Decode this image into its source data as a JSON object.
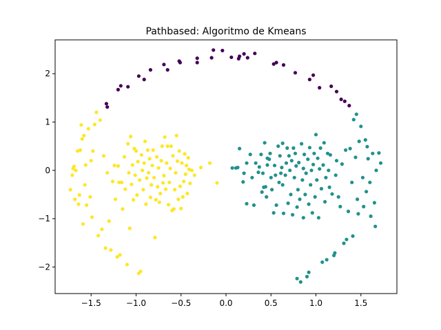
{
  "chart_data": {
    "type": "scatter",
    "title": "Pathbased: Algoritmo de Kmeans",
    "xlabel": "",
    "ylabel": "",
    "xlim": [
      -1.9,
      1.9
    ],
    "ylim": [
      -2.55,
      2.7
    ],
    "x_ticks": [
      -1.5,
      -1.0,
      -0.5,
      0.0,
      0.5,
      1.0,
      1.5
    ],
    "y_ticks": [
      -2,
      -1,
      0,
      1,
      2
    ],
    "x_tick_labels": [
      "−1.5",
      "−1.0",
      "−0.5",
      "0.0",
      "0.5",
      "1.0",
      "1.5"
    ],
    "y_tick_labels": [
      "−2",
      "−1",
      "0",
      "1",
      "2"
    ],
    "grid": false,
    "legend": "none",
    "series": [
      {
        "color": "#440154",
        "points": [
          [
            -1.33,
            1.38
          ],
          [
            -1.32,
            1.31
          ],
          [
            -1.2,
            1.67
          ],
          [
            -1.17,
            1.75
          ],
          [
            -1.09,
            1.73
          ],
          [
            -0.97,
            1.95
          ],
          [
            -0.91,
            1.88
          ],
          [
            -0.84,
            2.08
          ],
          [
            -0.69,
            2.19
          ],
          [
            -0.65,
            2.08
          ],
          [
            -0.51,
            2.23
          ],
          [
            -0.52,
            2.26
          ],
          [
            -0.32,
            2.32
          ],
          [
            -0.32,
            2.23
          ],
          [
            -0.14,
            2.49
          ],
          [
            -0.16,
            2.33
          ],
          [
            -0.04,
            2.48
          ],
          [
            0.06,
            2.34
          ],
          [
            0.14,
            2.31
          ],
          [
            0.15,
            2.36
          ],
          [
            0.2,
            2.41
          ],
          [
            0.24,
            2.33
          ],
          [
            0.32,
            2.42
          ],
          [
            0.53,
            2.2
          ],
          [
            0.56,
            2.23
          ],
          [
            0.64,
            2.18
          ],
          [
            0.77,
            2.02
          ],
          [
            0.93,
            1.88
          ],
          [
            0.97,
            1.97
          ],
          [
            1.04,
            1.71
          ],
          [
            1.17,
            1.74
          ],
          [
            1.23,
            1.63
          ],
          [
            1.28,
            1.47
          ],
          [
            1.32,
            1.43
          ],
          [
            1.37,
            1.34
          ]
        ]
      },
      {
        "color": "#21918c",
        "points": [
          [
            0.07,
            0.05
          ],
          [
            0.11,
            0.05
          ],
          [
            0.13,
            0.06
          ],
          [
            0.15,
            0.45
          ],
          [
            0.19,
            -0.24
          ],
          [
            0.2,
            -0.06
          ],
          [
            0.23,
            0.15
          ],
          [
            0.23,
            -0.69
          ],
          [
            0.27,
            0.33
          ],
          [
            0.29,
            -0.15
          ],
          [
            0.31,
            -0.72
          ],
          [
            0.33,
            0.15
          ],
          [
            0.36,
            -0.04
          ],
          [
            0.37,
            0.07
          ],
          [
            0.39,
            0.33
          ],
          [
            0.4,
            -0.45
          ],
          [
            0.41,
            -0.06
          ],
          [
            0.42,
            -0.35
          ],
          [
            0.43,
            0.57
          ],
          [
            0.44,
            -0.34
          ],
          [
            0.45,
            -0.55
          ],
          [
            0.46,
            0.25
          ],
          [
            0.46,
            0.11
          ],
          [
            0.48,
            0.23
          ],
          [
            0.49,
            0.35
          ],
          [
            0.5,
            -0.15
          ],
          [
            0.51,
            -0.4
          ],
          [
            0.53,
            -0.88
          ],
          [
            0.54,
            0.1
          ],
          [
            0.55,
            -0.1
          ],
          [
            0.56,
            -0.72
          ],
          [
            0.58,
            0.5
          ],
          [
            0.59,
            -0.25
          ],
          [
            0.6,
            0.3
          ],
          [
            0.61,
            -0.06
          ],
          [
            0.62,
            0.06
          ],
          [
            0.63,
            -0.3
          ],
          [
            0.63,
            0.56
          ],
          [
            0.64,
            -0.89
          ],
          [
            0.66,
            -0.1
          ],
          [
            0.67,
            0.15
          ],
          [
            0.68,
            0.46
          ],
          [
            0.69,
            -0.68
          ],
          [
            0.7,
            0.3
          ],
          [
            0.71,
            0.0
          ],
          [
            0.72,
            -0.5
          ],
          [
            0.73,
            0.2
          ],
          [
            0.74,
            -0.92
          ],
          [
            0.75,
            0.46
          ],
          [
            0.76,
            -0.15
          ],
          [
            0.77,
            0.35
          ],
          [
            0.78,
            0.09
          ],
          [
            0.79,
            -0.76
          ],
          [
            0.79,
            -2.24
          ],
          [
            0.8,
            -0.4
          ],
          [
            0.81,
            0.16
          ],
          [
            0.82,
            -0.6
          ],
          [
            0.83,
            -2.31
          ],
          [
            0.84,
            0.55
          ],
          [
            0.85,
            -0.2
          ],
          [
            0.86,
            0.04
          ],
          [
            0.86,
            -0.98
          ],
          [
            0.87,
            0.33
          ],
          [
            0.88,
            -0.5
          ],
          [
            0.89,
            -0.06
          ],
          [
            0.9,
            -2.2
          ],
          [
            0.91,
            0.23
          ],
          [
            0.92,
            -0.7
          ],
          [
            0.92,
            -2.11
          ],
          [
            0.93,
            0.47
          ],
          [
            0.94,
            -0.3
          ],
          [
            0.95,
            0.0
          ],
          [
            0.96,
            -0.88
          ],
          [
            0.97,
            0.12
          ],
          [
            0.98,
            0.35
          ],
          [
            0.99,
            -0.55
          ],
          [
            1.0,
            0.74
          ],
          [
            1.01,
            -0.2
          ],
          [
            1.02,
            0.25
          ],
          [
            1.03,
            -0.98
          ],
          [
            1.04,
            0.03
          ],
          [
            1.05,
            0.46
          ],
          [
            1.06,
            -0.38
          ],
          [
            1.07,
            -1.9
          ],
          [
            1.08,
            0.11
          ],
          [
            1.09,
            0.57
          ],
          [
            1.1,
            -0.65
          ],
          [
            1.11,
            -0.15
          ],
          [
            1.12,
            -1.85
          ],
          [
            1.13,
            0.35
          ],
          [
            1.14,
            0.0
          ],
          [
            1.15,
            -0.35
          ],
          [
            1.16,
            0.32
          ],
          [
            1.18,
            -0.49
          ],
          [
            1.2,
            -1.76
          ],
          [
            1.21,
            -1.71
          ],
          [
            1.22,
            -0.1
          ],
          [
            1.23,
            0.2
          ],
          [
            1.25,
            -0.55
          ],
          [
            1.27,
            -0.75
          ],
          [
            1.29,
            0.13
          ],
          [
            1.31,
            -1.51
          ],
          [
            1.33,
            0.42
          ],
          [
            1.34,
            -1.43
          ],
          [
            1.36,
            -0.85
          ],
          [
            1.38,
            0.45
          ],
          [
            1.4,
            -0.25
          ],
          [
            1.41,
            -1.36
          ],
          [
            1.42,
            1.05
          ],
          [
            1.44,
            0.27
          ],
          [
            1.45,
            1.16
          ],
          [
            1.46,
            -0.6
          ],
          [
            1.47,
            -0.9
          ],
          [
            1.48,
            0.6
          ],
          [
            1.5,
            0.91
          ],
          [
            1.52,
            -0.15
          ],
          [
            1.53,
            -0.75
          ],
          [
            1.55,
            0.63
          ],
          [
            1.56,
            -0.44
          ],
          [
            1.57,
            0.49
          ],
          [
            1.58,
            0.24
          ],
          [
            1.6,
            -0.25
          ],
          [
            1.61,
            -0.95
          ],
          [
            1.63,
            0.35
          ],
          [
            1.65,
            -0.67
          ],
          [
            1.66,
            -1.16
          ],
          [
            1.67,
            0.0
          ],
          [
            1.7,
            0.36
          ],
          [
            1.72,
            0.15
          ]
        ]
      },
      {
        "color": "#fde725",
        "points": [
          [
            -1.73,
            -0.4
          ],
          [
            -1.71,
            -0.1
          ],
          [
            -1.7,
            0.04
          ],
          [
            -1.69,
            0.08
          ],
          [
            -1.68,
            -0.6
          ],
          [
            -1.67,
            0.0
          ],
          [
            -1.65,
            0.4
          ],
          [
            -1.64,
            -0.7
          ],
          [
            -1.63,
            -0.51
          ],
          [
            -1.62,
            0.42
          ],
          [
            -1.61,
            0.94
          ],
          [
            -1.6,
            0.65
          ],
          [
            -1.59,
            -1.11
          ],
          [
            -1.58,
            0.72
          ],
          [
            -1.57,
            -0.3
          ],
          [
            -1.56,
            0.11
          ],
          [
            -1.55,
            -0.72
          ],
          [
            -1.53,
            0.86
          ],
          [
            -1.51,
            -0.55
          ],
          [
            -1.5,
            0.2
          ],
          [
            -1.49,
            -0.97
          ],
          [
            -1.48,
            0.4
          ],
          [
            -1.46,
            0.95
          ],
          [
            -1.44,
            1.2
          ],
          [
            -1.42,
            -1.35
          ],
          [
            -1.4,
            1.04
          ],
          [
            -1.38,
            -1.22
          ],
          [
            -1.36,
            0.3
          ],
          [
            -1.34,
            -1.61
          ],
          [
            -1.32,
            -0.05
          ],
          [
            -1.3,
            -1.05
          ],
          [
            -1.28,
            -1.65
          ],
          [
            -1.26,
            -0.23
          ],
          [
            -1.24,
            0.1
          ],
          [
            -1.23,
            -0.6
          ],
          [
            -1.21,
            -1.79
          ],
          [
            -1.2,
            0.09
          ],
          [
            -1.19,
            -0.25
          ],
          [
            -1.18,
            -1.75
          ],
          [
            -1.16,
            -0.25
          ],
          [
            -1.15,
            -0.8
          ],
          [
            -1.13,
            0.28
          ],
          [
            -1.12,
            -0.39
          ],
          [
            -1.1,
            -1.95
          ],
          [
            -1.09,
            0.55
          ],
          [
            -1.08,
            -0.05
          ],
          [
            -1.07,
            -1.2
          ],
          [
            -1.06,
            0.7
          ],
          [
            -1.05,
            -0.29
          ],
          [
            -1.04,
            0.11
          ],
          [
            -1.03,
            -0.61
          ],
          [
            -1.02,
            0.45
          ],
          [
            -1.01,
            -0.1
          ],
          [
            -1.0,
            0.4
          ],
          [
            -0.99,
            -0.51
          ],
          [
            -0.98,
            0.18
          ],
          [
            -0.97,
            -2.13
          ],
          [
            -0.96,
            -0.2
          ],
          [
            -0.95,
            -2.09
          ],
          [
            -0.94,
            0.32
          ],
          [
            -0.93,
            0.0
          ],
          [
            -0.92,
            -0.4
          ],
          [
            -0.91,
            0.15
          ],
          [
            -0.9,
            0.6
          ],
          [
            -0.89,
            -0.7
          ],
          [
            -0.88,
            -0.16
          ],
          [
            -0.87,
            0.42
          ],
          [
            -0.86,
            -0.05
          ],
          [
            -0.85,
            0.24
          ],
          [
            -0.84,
            -0.56
          ],
          [
            -0.83,
            -0.3
          ],
          [
            -0.82,
            0.1
          ],
          [
            -0.81,
            0.42
          ],
          [
            -0.8,
            -0.15
          ],
          [
            -0.79,
            -1.39
          ],
          [
            -0.78,
            -0.61
          ],
          [
            -0.77,
            0.28
          ],
          [
            -0.76,
            -0.34
          ],
          [
            -0.75,
            0.05
          ],
          [
            -0.74,
            -0.66
          ],
          [
            -0.73,
            -0.48
          ],
          [
            -0.72,
            0.2
          ],
          [
            -0.71,
            0.5
          ],
          [
            -0.7,
            -0.26
          ],
          [
            -0.69,
            -0.11
          ],
          [
            -0.68,
            0.69
          ],
          [
            -0.67,
            -0.39
          ],
          [
            -0.66,
            0.15
          ],
          [
            -0.65,
            0.5
          ],
          [
            -0.64,
            -0.71
          ],
          [
            -0.63,
            -0.25
          ],
          [
            -0.62,
            0.04
          ],
          [
            -0.61,
            0.5
          ],
          [
            -0.6,
            -0.83
          ],
          [
            -0.59,
            0.3
          ],
          [
            -0.58,
            -0.8
          ],
          [
            -0.57,
            -0.4
          ],
          [
            -0.56,
            -0.05
          ],
          [
            -0.55,
            0.72
          ],
          [
            -0.54,
            0.19
          ],
          [
            -0.53,
            -0.6
          ],
          [
            -0.52,
            0.4
          ],
          [
            -0.51,
            -0.33
          ],
          [
            -0.5,
            -0.79
          ],
          [
            -0.49,
            0.15
          ],
          [
            -0.48,
            -0.55
          ],
          [
            -0.47,
            -0.23
          ],
          [
            -0.46,
            0.34
          ],
          [
            -0.45,
            -0.08
          ],
          [
            -0.44,
            0.1
          ],
          [
            -0.43,
            -0.48
          ],
          [
            -0.42,
            0.26
          ],
          [
            -0.41,
            0.02
          ],
          [
            -0.4,
            -0.27
          ],
          [
            -0.38,
            0.0
          ],
          [
            -0.35,
            -0.1
          ],
          [
            -0.28,
            0.06
          ],
          [
            -0.18,
            0.15
          ],
          [
            -0.1,
            -0.26
          ]
        ]
      }
    ]
  }
}
